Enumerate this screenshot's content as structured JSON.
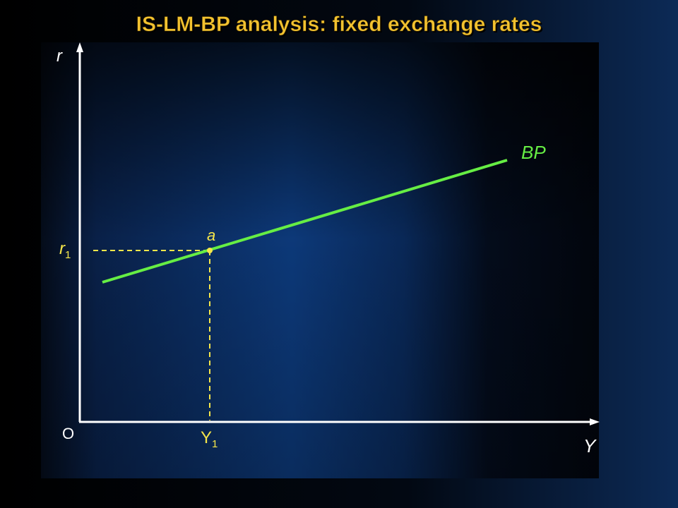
{
  "title": "IS-LM-BP analysis: fixed exchange rates",
  "axes": {
    "y_label": "r",
    "x_label": "Y",
    "origin": "O"
  },
  "equilibrium": {
    "rate": {
      "base": "r",
      "sub": "1"
    },
    "income": {
      "base": "Y",
      "sub": "1"
    },
    "point": "a"
  },
  "curves": [
    {
      "label": "BP"
    }
  ]
}
